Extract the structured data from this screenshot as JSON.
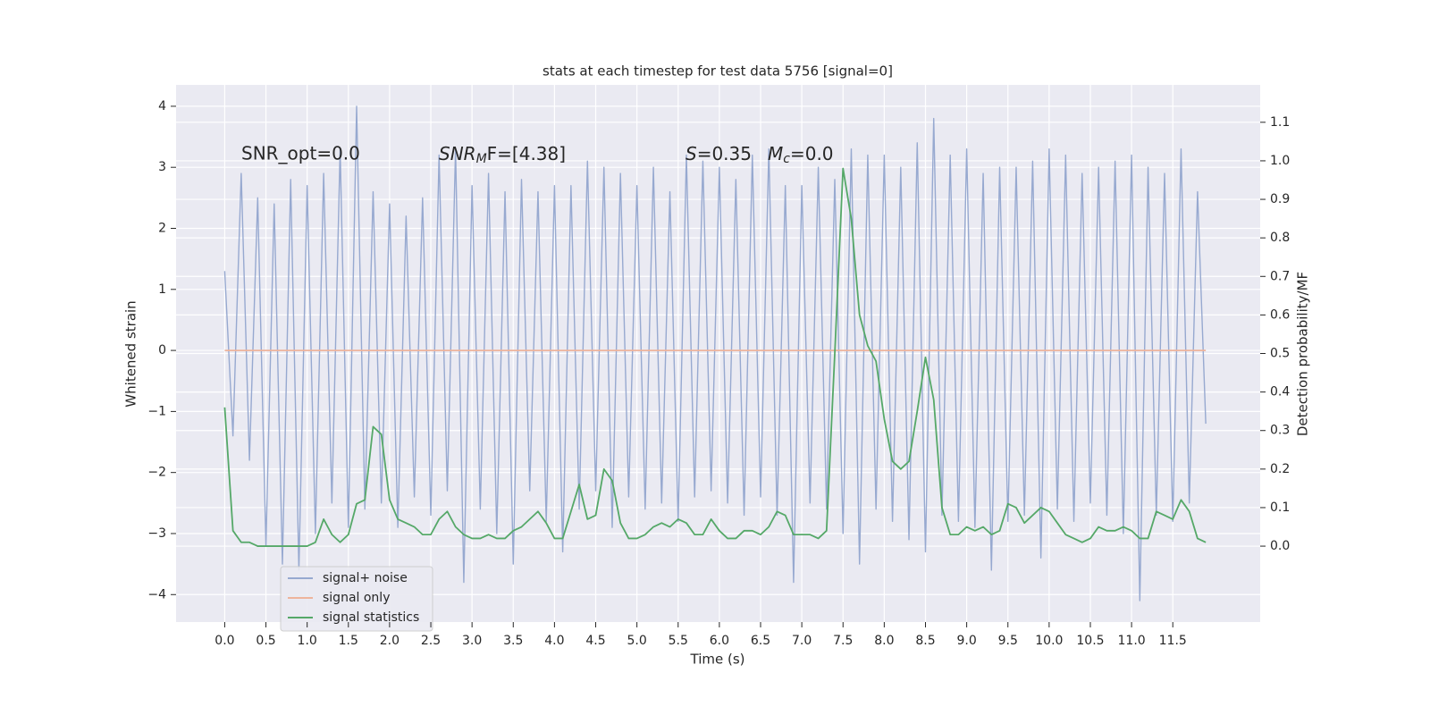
{
  "chart_data": {
    "type": "line",
    "title": "stats at each timestep for test data 5756 [signal=0]",
    "xlabel": "Time (s)",
    "ylabel": "Whitened strain",
    "y2label": "Detection probability/MF",
    "annotations": [
      {
        "text": "SNR_opt=0.0"
      },
      {
        "base": "SNR",
        "sub": "M",
        "rest": "F=[4.38]"
      },
      {
        "base": "S",
        "rest": "=0.35"
      },
      {
        "base": "M",
        "sub": "c",
        "rest": "=0.0"
      }
    ],
    "xlim": [
      -0.59,
      12.56
    ],
    "ylim": [
      -4.45,
      4.35
    ],
    "y2lim": [
      -0.197,
      1.197
    ],
    "xticks": [
      {
        "value": 0,
        "label": "0.0"
      },
      0.5,
      {
        "value": 1,
        "label": "1.0"
      },
      1.5,
      {
        "value": 2,
        "label": "2.0"
      },
      2.5,
      {
        "value": 3,
        "label": "3.0"
      },
      3.5,
      {
        "value": 4,
        "label": "4.0"
      },
      4.5,
      {
        "value": 5,
        "label": "5.0"
      },
      5.5,
      {
        "value": 6,
        "label": "6.0"
      },
      6.5,
      {
        "value": 7,
        "label": "7.0"
      },
      7.5,
      {
        "value": 8,
        "label": "8.0"
      },
      8.5,
      {
        "value": 9,
        "label": "9.0"
      },
      9.5,
      {
        "value": 10,
        "label": "10.0"
      },
      10.5,
      {
        "value": 11,
        "label": "11.0"
      },
      11.5
    ],
    "yticks": [
      {
        "value": -4,
        "label": "−4"
      },
      {
        "value": -3,
        "label": "−3"
      },
      {
        "value": -2,
        "label": "−2"
      },
      {
        "value": -1,
        "label": "−1"
      },
      0,
      1,
      2,
      3,
      4
    ],
    "y2ticks": [
      {
        "value": 0,
        "label": "0.0"
      },
      0.1,
      0.2,
      0.3,
      0.4,
      0.5,
      0.6,
      0.7,
      0.8,
      0.9,
      {
        "value": 1,
        "label": "1.0"
      },
      1.1
    ],
    "grid": true,
    "legend": "lower left",
    "x": [
      0,
      0.1,
      0.2,
      0.3,
      0.4,
      0.5,
      0.6,
      0.7,
      0.8,
      0.9,
      1,
      1.1,
      1.2,
      1.3,
      1.4,
      1.5,
      1.6,
      1.7,
      1.8,
      1.9,
      2,
      2.1,
      2.2,
      2.3,
      2.4,
      2.5,
      2.6,
      2.7,
      2.8,
      2.9,
      3,
      3.1,
      3.2,
      3.3,
      3.4,
      3.5,
      3.6,
      3.7,
      3.8,
      3.9,
      4,
      4.1,
      4.2,
      4.3,
      4.4,
      4.5,
      4.6,
      4.7,
      4.8,
      4.9,
      5,
      5.1,
      5.2,
      5.3,
      5.4,
      5.5,
      5.6,
      5.7,
      5.8,
      5.9,
      6,
      6.1,
      6.2,
      6.3,
      6.4,
      6.5,
      6.6,
      6.7,
      6.8,
      6.9,
      7,
      7.1,
      7.2,
      7.3,
      7.4,
      7.5,
      7.6,
      7.7,
      7.8,
      7.9,
      8,
      8.1,
      8.2,
      8.3,
      8.4,
      8.5,
      8.6,
      8.7,
      8.8,
      8.9,
      9,
      9.1,
      9.2,
      9.3,
      9.4,
      9.5,
      9.6,
      9.7,
      9.8,
      9.9,
      10,
      10.1,
      10.2,
      10.3,
      10.4,
      10.5,
      10.6,
      10.7,
      10.8,
      10.9,
      11,
      11.1,
      11.2,
      11.3,
      11.4,
      11.5,
      11.6,
      11.7,
      11.8,
      11.9
    ],
    "series": [
      {
        "name": "signal+ noise",
        "color": "#97a9d0",
        "values": [
          1.3,
          -1.4,
          2.9,
          -1.8,
          2.5,
          -3.2,
          2.4,
          -3.5,
          2.8,
          -3.6,
          2.7,
          -3.0,
          2.9,
          -2.5,
          3.3,
          -2.9,
          4.0,
          -2.6,
          2.6,
          -2.5,
          2.4,
          -2.9,
          2.2,
          -2.4,
          2.5,
          -2.7,
          3.2,
          -2.3,
          3.3,
          -3.8,
          2.7,
          -2.6,
          2.9,
          -3.0,
          2.6,
          -3.5,
          2.8,
          -2.3,
          2.6,
          -2.8,
          2.7,
          -3.3,
          2.7,
          -2.6,
          3.1,
          -2.3,
          3.0,
          -2.9,
          2.9,
          -2.4,
          2.7,
          -2.6,
          3.0,
          -2.5,
          2.6,
          -2.8,
          3.2,
          -2.4,
          3.1,
          -2.3,
          3.0,
          -2.5,
          2.8,
          -2.7,
          3.2,
          -2.4,
          3.3,
          -2.7,
          2.7,
          -3.8,
          2.7,
          -2.5,
          3.0,
          -2.6,
          2.8,
          -3.0,
          3.3,
          -3.5,
          3.2,
          -2.6,
          3.2,
          -2.8,
          3.0,
          -3.1,
          3.4,
          -3.3,
          3.8,
          -2.7,
          3.2,
          -2.8,
          3.3,
          -2.9,
          2.9,
          -3.6,
          3.0,
          -2.8,
          3.0,
          -2.7,
          3.1,
          -3.4,
          3.3,
          -2.6,
          3.2,
          -2.8,
          2.9,
          -2.5,
          3.0,
          -2.7,
          3.1,
          -3.0,
          3.2,
          -4.1,
          3.0,
          -2.7,
          2.9,
          -2.8,
          3.3,
          -2.5,
          2.6,
          -1.2
        ]
      },
      {
        "name": "signal only",
        "color": "#eeb49c",
        "values": [
          0,
          0,
          0,
          0,
          0,
          0,
          0,
          0,
          0,
          0,
          0,
          0,
          0,
          0,
          0,
          0,
          0,
          0,
          0,
          0,
          0,
          0,
          0,
          0,
          0,
          0,
          0,
          0,
          0,
          0,
          0,
          0,
          0,
          0,
          0,
          0,
          0,
          0,
          0,
          0,
          0,
          0,
          0,
          0,
          0,
          0,
          0,
          0,
          0,
          0,
          0,
          0,
          0,
          0,
          0,
          0,
          0,
          0,
          0,
          0,
          0,
          0,
          0,
          0,
          0,
          0,
          0,
          0,
          0,
          0,
          0,
          0,
          0,
          0,
          0,
          0,
          0,
          0,
          0,
          0,
          0,
          0,
          0,
          0,
          0,
          0,
          0,
          0,
          0,
          0,
          0,
          0,
          0,
          0,
          0,
          0,
          0,
          0,
          0,
          0,
          0,
          0,
          0,
          0,
          0,
          0,
          0,
          0,
          0,
          0,
          0,
          0,
          0,
          0,
          0,
          0,
          0,
          0,
          0,
          0
        ]
      },
      {
        "name": "signal statistics",
        "color": "#55a868",
        "axis": "y2",
        "values": [
          0.36,
          0.04,
          0.01,
          0.01,
          0,
          0,
          0,
          0,
          0,
          0,
          0,
          0.01,
          0.07,
          0.03,
          0.01,
          0.03,
          0.11,
          0.12,
          0.31,
          0.29,
          0.12,
          0.07,
          0.06,
          0.05,
          0.03,
          0.03,
          0.07,
          0.09,
          0.05,
          0.03,
          0.02,
          0.02,
          0.03,
          0.02,
          0.02,
          0.04,
          0.05,
          0.07,
          0.09,
          0.06,
          0.02,
          0.02,
          0.09,
          0.16,
          0.07,
          0.08,
          0.2,
          0.17,
          0.06,
          0.02,
          0.02,
          0.03,
          0.05,
          0.06,
          0.05,
          0.07,
          0.06,
          0.03,
          0.03,
          0.07,
          0.04,
          0.02,
          0.02,
          0.04,
          0.04,
          0.03,
          0.05,
          0.09,
          0.08,
          0.03,
          0.03,
          0.03,
          0.02,
          0.04,
          0.5,
          0.98,
          0.85,
          0.6,
          0.52,
          0.48,
          0.33,
          0.22,
          0.2,
          0.22,
          0.35,
          0.49,
          0.38,
          0.1,
          0.03,
          0.03,
          0.05,
          0.04,
          0.05,
          0.03,
          0.04,
          0.11,
          0.1,
          0.06,
          0.08,
          0.1,
          0.09,
          0.06,
          0.03,
          0.02,
          0.01,
          0.02,
          0.05,
          0.04,
          0.04,
          0.05,
          0.04,
          0.02,
          0.02,
          0.09,
          0.08,
          0.07,
          0.12,
          0.09,
          0.02,
          0.01
        ]
      }
    ]
  }
}
